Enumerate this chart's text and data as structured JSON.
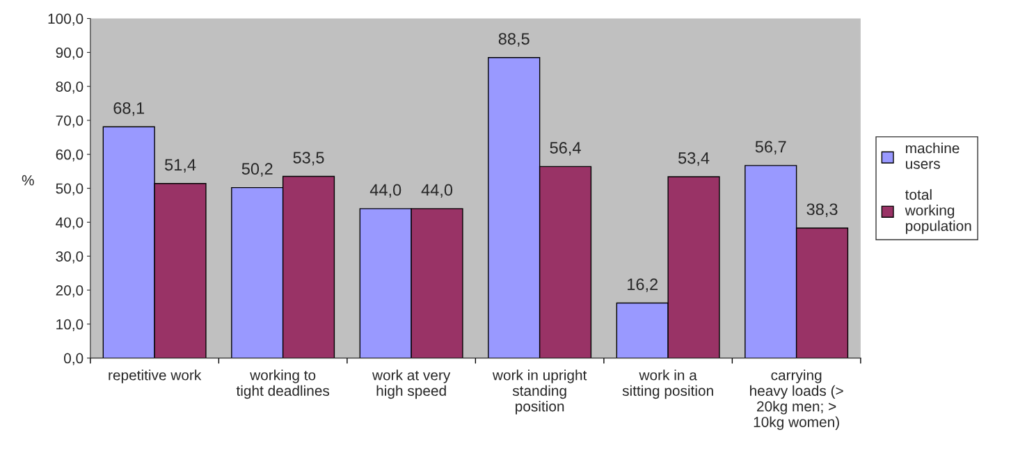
{
  "chart_data": {
    "type": "bar",
    "ylabel": "%",
    "categories": [
      "repetitive work",
      "working to\ntight deadlines",
      "work at very\nhigh speed",
      "work in upright\nstanding\nposition",
      "work in a\nsitting position",
      "carrying\nheavy loads (>\n20kg men; >\n10kg women)"
    ],
    "series": [
      {
        "name": "machine users",
        "color": "#9999ff",
        "values": [
          68.1,
          50.2,
          44.0,
          88.5,
          16.2,
          56.7
        ],
        "value_labels": [
          "68,1",
          "50,2",
          "44,0",
          "88,5",
          "16,2",
          "56,7"
        ]
      },
      {
        "name": "total working population",
        "color": "#993366",
        "values": [
          51.4,
          53.5,
          44.0,
          56.4,
          53.4,
          38.3
        ],
        "value_labels": [
          "51,4",
          "53,5",
          "44,0",
          "56,4",
          "53,4",
          "38,3"
        ]
      }
    ],
    "ylim": [
      0,
      100
    ],
    "yticks": [
      {
        "value": 0,
        "label": "0,0"
      },
      {
        "value": 10,
        "label": "10,0"
      },
      {
        "value": 20,
        "label": "20,0"
      },
      {
        "value": 30,
        "label": "30,0"
      },
      {
        "value": 40,
        "label": "40,0"
      },
      {
        "value": 50,
        "label": "50,0"
      },
      {
        "value": 60,
        "label": "60,0"
      },
      {
        "value": 70,
        "label": "70,0"
      },
      {
        "value": 80,
        "label": "80,0"
      },
      {
        "value": 90,
        "label": "90,0"
      },
      {
        "value": 100,
        "label": "100,0"
      }
    ],
    "grid": false,
    "legend": "right"
  }
}
